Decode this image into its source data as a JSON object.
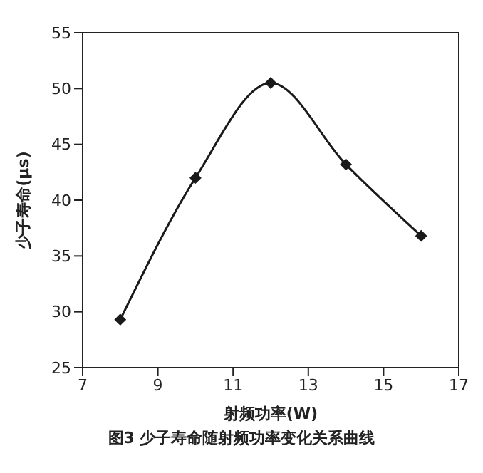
{
  "chart_data": {
    "type": "line",
    "xlabel": "射频功率(W)",
    "ylabel": "少子寿命(μs)",
    "annotations": [
      "图3  少子寿命随射频功率变化关系曲线"
    ],
    "x": [
      8,
      10,
      12,
      14,
      16
    ],
    "series": [
      {
        "color": "#1a1a1a",
        "values": [
          29.3,
          42,
          50.5,
          43.2,
          36.8
        ]
      }
    ],
    "xlim": [
      7,
      17
    ],
    "xticks": [
      7,
      9,
      11,
      13,
      15,
      17
    ],
    "ylim": [
      25,
      55
    ],
    "yticks": [
      25,
      30,
      35,
      40,
      45,
      50,
      55
    ],
    "grid": false,
    "legend": false,
    "marker": "diamond",
    "line_style": "solid"
  }
}
